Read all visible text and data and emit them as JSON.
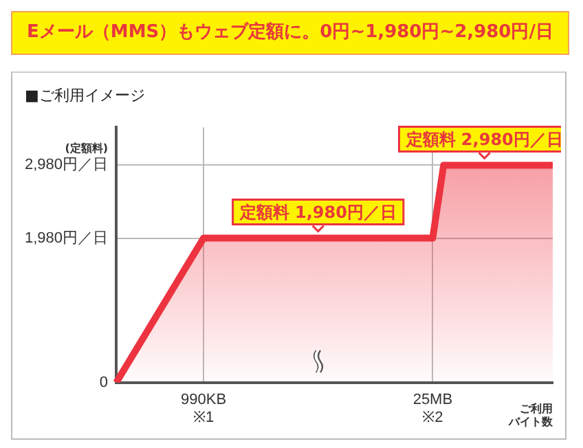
{
  "chart_data": {
    "type": "area",
    "title": "Eメール（MMS）もウェブ定額に。0円~1,980円~2,980円/日",
    "subtitle": "■ご利用イメージ",
    "ylabel": "(定額料)",
    "xlabel": "ご利用バイト数",
    "categories": [
      null,
      null,
      null,
      null,
      null,
      null,
      null,
      null,
      "990KB\n※1",
      null,
      null,
      null,
      null,
      null,
      null,
      null,
      null,
      null,
      null,
      null,
      null,
      null,
      null,
      null,
      null,
      null,
      null,
      null,
      null,
      "25MB\n※2",
      null,
      null,
      null,
      null,
      null,
      null,
      null,
      null,
      null,
      null,
      null
    ],
    "series": [
      {
        "color": "#ee3340",
        "values": [
          0,
          null,
          null,
          null,
          null,
          null,
          null,
          null,
          1980,
          1980,
          1980,
          1980,
          1980,
          1980,
          1980,
          1980,
          1980,
          1980,
          1980,
          1980,
          1980,
          1980,
          1980,
          1980,
          1980,
          1980,
          1980,
          1980,
          1980,
          1980,
          2980,
          2980,
          2980,
          2980,
          2980,
          2980,
          2980,
          2980,
          2980,
          2980,
          2980
        ]
      }
    ],
    "ylim": [
      0,
      3500
    ],
    "yticks": [
      0,
      {
        "value": 1980,
        "label": "1,980円／日"
      },
      {
        "value": 2980,
        "label": "2,980円／日"
      }
    ],
    "annotations": [
      {
        "text": "定額料 1,980円／日",
        "y": 1980
      },
      {
        "text": "定額料 2,980円／日",
        "y": 2980
      }
    ],
    "grid": true,
    "legend": false
  }
}
